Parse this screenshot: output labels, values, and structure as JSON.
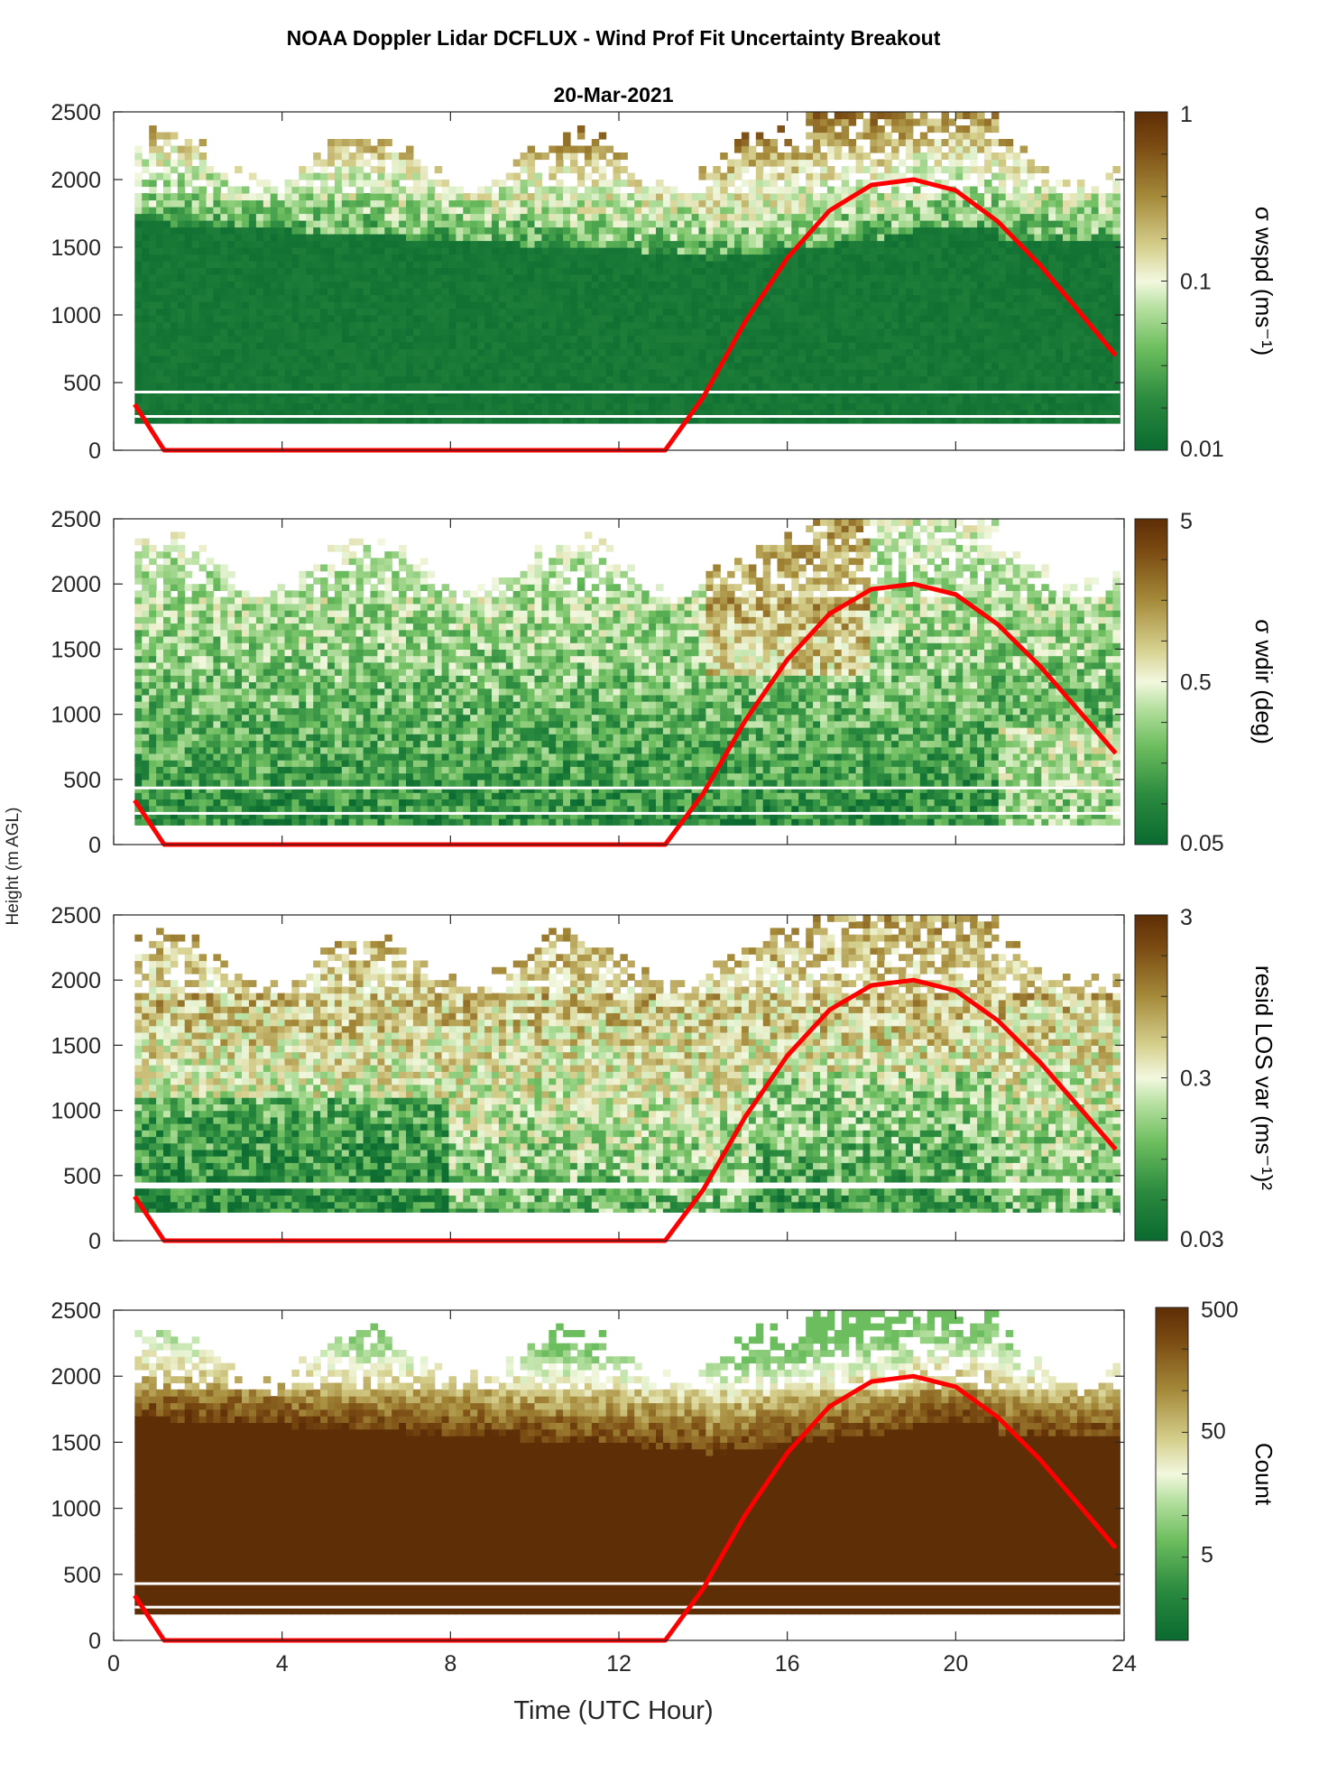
{
  "figure": {
    "title": "NOAA Doppler Lidar DCFLUX - Wind Prof Fit Uncertainty Breakout",
    "subtitle": "20-Mar-2021",
    "ylabel": "Height (m AGL)",
    "xlabel": "Time (UTC Hour)"
  },
  "colors": {
    "overlay_line": "#ff0000",
    "colormap_low": "#0a6a30",
    "colormap_mid": "#f2f8df",
    "colormap_high": "#5e2e06"
  },
  "chart_data": [
    {
      "type": "heatmap",
      "panel": "sigma-wspd",
      "colorbar_label": "σ wspd (ms⁻¹)",
      "colorbar_ticks": [
        "1",
        "0.1",
        "0.01"
      ],
      "colorbar_scale": "log",
      "colorbar_range": [
        0.01,
        1
      ],
      "xlim": [
        0,
        24
      ],
      "ylim": [
        0,
        2500
      ],
      "x_ticks": [
        0,
        4,
        8,
        12,
        16,
        20,
        24
      ],
      "y_ticks": [
        0,
        500,
        1000,
        1500,
        2000,
        2500
      ],
      "y_tick_labels": [
        "0",
        "500",
        "1000",
        "1500",
        "2000",
        "2500"
      ],
      "grid": false,
      "overlay_line": {
        "name": "",
        "points": [
          [
            0.5,
            340
          ],
          [
            1.2,
            0
          ],
          [
            13.1,
            0
          ],
          [
            14.0,
            390
          ],
          [
            15.0,
            950
          ],
          [
            16.0,
            1420
          ],
          [
            17.0,
            1770
          ],
          [
            18.0,
            1960
          ],
          [
            19.0,
            2000
          ],
          [
            20.0,
            1920
          ],
          [
            21.0,
            1690
          ],
          [
            22.0,
            1370
          ],
          [
            23.0,
            1000
          ],
          [
            23.8,
            700
          ]
        ]
      }
    },
    {
      "type": "heatmap",
      "panel": "sigma-wdir",
      "colorbar_label": "σ wdir (deg)",
      "colorbar_ticks": [
        "5",
        "0.5",
        "0.05"
      ],
      "colorbar_scale": "log",
      "colorbar_range": [
        0.05,
        5
      ],
      "xlim": [
        0,
        24
      ],
      "ylim": [
        0,
        2500
      ],
      "x_ticks": [
        0,
        4,
        8,
        12,
        16,
        20,
        24
      ],
      "y_ticks": [
        0,
        500,
        1000,
        1500,
        2000,
        2500
      ],
      "y_tick_labels": [
        "0",
        "500",
        "1000",
        "1500",
        "2000",
        "2500"
      ],
      "grid": false,
      "overlay_line": {
        "name": "",
        "points": [
          [
            0.5,
            340
          ],
          [
            1.2,
            0
          ],
          [
            13.1,
            0
          ],
          [
            14.0,
            390
          ],
          [
            15.0,
            950
          ],
          [
            16.0,
            1420
          ],
          [
            17.0,
            1770
          ],
          [
            18.0,
            1960
          ],
          [
            19.0,
            2000
          ],
          [
            20.0,
            1920
          ],
          [
            21.0,
            1690
          ],
          [
            22.0,
            1370
          ],
          [
            23.0,
            1000
          ],
          [
            23.8,
            700
          ]
        ]
      }
    },
    {
      "type": "heatmap",
      "panel": "resid-los-var",
      "colorbar_label": "resid LOS var (ms⁻¹)²",
      "colorbar_ticks": [
        "3",
        "0.3",
        "0.03"
      ],
      "colorbar_scale": "log",
      "colorbar_range": [
        0.03,
        3
      ],
      "xlim": [
        0,
        24
      ],
      "ylim": [
        0,
        2500
      ],
      "x_ticks": [
        0,
        4,
        8,
        12,
        16,
        20,
        24
      ],
      "y_ticks": [
        0,
        500,
        1000,
        1500,
        2000,
        2500
      ],
      "y_tick_labels": [
        "0",
        "500",
        "1000",
        "1500",
        "2000",
        "2500"
      ],
      "grid": false,
      "overlay_line": {
        "name": "",
        "points": [
          [
            0.5,
            340
          ],
          [
            1.2,
            0
          ],
          [
            13.1,
            0
          ],
          [
            14.0,
            390
          ],
          [
            15.0,
            950
          ],
          [
            16.0,
            1420
          ],
          [
            17.0,
            1770
          ],
          [
            18.0,
            1960
          ],
          [
            19.0,
            2000
          ],
          [
            20.0,
            1920
          ],
          [
            21.0,
            1690
          ],
          [
            22.0,
            1370
          ],
          [
            23.0,
            1000
          ],
          [
            23.8,
            700
          ]
        ]
      }
    },
    {
      "type": "heatmap",
      "panel": "count",
      "colorbar_label": "Count",
      "colorbar_ticks": [
        "500",
        "50",
        "5"
      ],
      "colorbar_scale": "log",
      "colorbar_range": [
        1,
        500
      ],
      "xlim": [
        0,
        24
      ],
      "ylim": [
        0,
        2500
      ],
      "x_ticks": [
        0,
        4,
        8,
        12,
        16,
        20,
        24
      ],
      "x_tick_labels": [
        "0",
        "4",
        "8",
        "12",
        "16",
        "20",
        "24"
      ],
      "y_ticks": [
        0,
        500,
        1000,
        1500,
        2000,
        2500
      ],
      "y_tick_labels": [
        "0",
        "500",
        "1000",
        "1500",
        "2000",
        "2500"
      ],
      "grid": false,
      "overlay_line": {
        "name": "",
        "points": [
          [
            0.5,
            340
          ],
          [
            1.2,
            0
          ],
          [
            13.1,
            0
          ],
          [
            14.0,
            390
          ],
          [
            15.0,
            950
          ],
          [
            16.0,
            1420
          ],
          [
            17.0,
            1770
          ],
          [
            18.0,
            1960
          ],
          [
            19.0,
            2000
          ],
          [
            20.0,
            1920
          ],
          [
            21.0,
            1690
          ],
          [
            22.0,
            1370
          ],
          [
            23.0,
            1000
          ],
          [
            23.8,
            700
          ]
        ]
      }
    }
  ]
}
